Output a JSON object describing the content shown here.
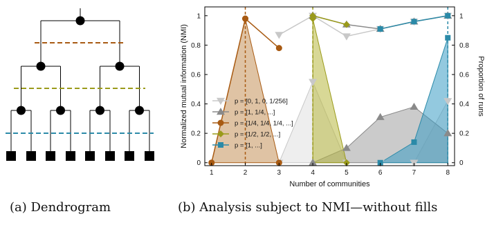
{
  "captions": {
    "a": "(a) Dendrogram",
    "b": "(b) Analysis subject to NMI—without fills"
  },
  "dendrogram": {
    "cut_colors": [
      "#a85a12",
      "#9a9a1a",
      "#2b8aa8"
    ]
  },
  "chart_data": {
    "type": "line",
    "xlabel": "Number of communities",
    "ylabel_left": "Normalized mutual information (NMI)",
    "ylabel_right": "Proportion of runs",
    "x_ticks": [
      "1",
      "2",
      "3",
      "4",
      "5",
      "6",
      "7",
      "8"
    ],
    "y_ticks": [
      "0",
      "0.2",
      "0.4",
      "0.6",
      "0.8",
      "1"
    ],
    "xlim": [
      0.8,
      8.2
    ],
    "ylim": [
      -0.02,
      1.06
    ],
    "vlines": [
      {
        "x": 2,
        "color": "#a85a12"
      },
      {
        "x": 4,
        "color": "#9a9a1a"
      },
      {
        "x": 8,
        "color": "#2b8aa8"
      }
    ],
    "series": [
      {
        "name": "p = [0, 1, 0, 1/256]",
        "marker": "triangle-down",
        "color": "#c8c8c8",
        "fill": "#e0e0e0",
        "x": [
          3,
          4,
          5,
          6,
          7,
          8
        ],
        "nmi": [
          0.87,
          1.0,
          0.86,
          0.91,
          0.96,
          1.0
        ],
        "proportion": [
          0,
          0.55,
          0,
          0,
          0,
          0.42
        ]
      },
      {
        "name": "p = [1, 1/4, ...]",
        "marker": "triangle-up",
        "color": "#8a8a8a",
        "fill": "#a0a0a0",
        "x": [
          4,
          5,
          6,
          7,
          8
        ],
        "nmi": [
          1.0,
          0.94,
          0.91,
          0.96,
          1.0
        ],
        "proportion": [
          0,
          0.1,
          0.31,
          0.38,
          0.2
        ]
      },
      {
        "name": "p = [1/4, 1/4, 1/4, ...]",
        "marker": "circle",
        "color": "#a85a12",
        "fill": "#c4915a",
        "x": [
          1,
          2,
          3
        ],
        "nmi": [
          0,
          0.98,
          0.78
        ],
        "proportion": [
          0,
          0.98,
          0
        ]
      },
      {
        "name": "p = [1/2, 1/2, ...]",
        "marker": "diamond",
        "color": "#9a9a1a",
        "fill": "#b8b840",
        "x": [
          4,
          5
        ],
        "nmi": [
          1.0,
          0.94
        ],
        "proportion": [
          0.98,
          0
        ]
      },
      {
        "name": "p = [1, ...]",
        "marker": "square",
        "color": "#2b8aa8",
        "fill": "#3a9cc4",
        "x": [
          6,
          7,
          8
        ],
        "nmi": [
          0.91,
          0.96,
          1.0
        ],
        "proportion": [
          0,
          0.14,
          0.85
        ]
      }
    ],
    "legend_position": "lower-left"
  }
}
